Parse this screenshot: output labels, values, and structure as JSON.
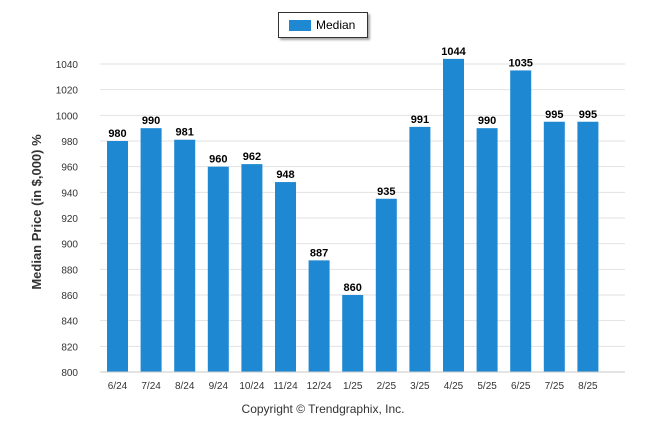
{
  "chart_data": {
    "type": "bar",
    "categories": [
      "6/24",
      "7/24",
      "8/24",
      "9/24",
      "10/24",
      "11/24",
      "12/24",
      "1/25",
      "2/25",
      "3/25",
      "4/25",
      "5/25",
      "6/25",
      "7/25",
      "8/25"
    ],
    "series": [
      {
        "name": "Median",
        "values": [
          980,
          990,
          981,
          960,
          962,
          948,
          887,
          860,
          935,
          991,
          1044,
          990,
          1035,
          995,
          995
        ]
      }
    ],
    "ylabel": "Median Price (in $,000) %",
    "xlabel": "",
    "ylim": [
      800,
      1040
    ],
    "yticks": [
      800,
      820,
      840,
      860,
      880,
      900,
      920,
      940,
      960,
      980,
      1000,
      1020,
      1040
    ],
    "grid": true,
    "legend_position": "top-center",
    "bar_color": "#1f88d2",
    "data_labels": true
  },
  "footer": {
    "copyright": "Copyright © Trendgraphix, Inc."
  }
}
